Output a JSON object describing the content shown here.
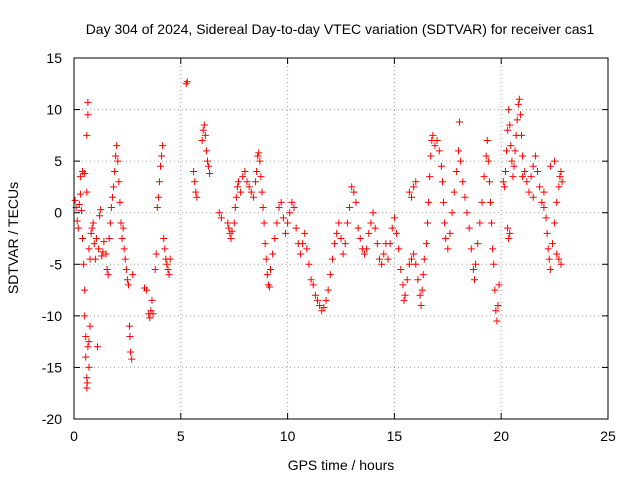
{
  "chart_data": {
    "type": "scatter",
    "title": "Day 304 of 2024, Sidereal Day-to-day VTEC variation (SDTVAR) for receiver cas1",
    "xlabel": "GPS time / hours",
    "ylabel": "SDTVAR / TECUs",
    "xlim": [
      0,
      25
    ],
    "ylim": [
      -20,
      15
    ],
    "xticks": [
      "0",
      "5",
      "10",
      "15",
      "20",
      "25"
    ],
    "yticks": [
      "-20",
      "-15",
      "-10",
      "-5",
      "0",
      "5",
      "10",
      "15"
    ],
    "grid": true,
    "marker": "+",
    "color": "#ff0000",
    "series": [
      {
        "name": "SDTVAR",
        "points": [
          [
            0.05,
            1.2
          ],
          [
            0.1,
            0.5
          ],
          [
            0.15,
            -0.8
          ],
          [
            0.2,
            -1.5
          ],
          [
            0.25,
            0.8
          ],
          [
            0.3,
            1.8
          ],
          [
            0.35,
            0.2
          ],
          [
            0.4,
            -2.5
          ],
          [
            0.3,
            3.5
          ],
          [
            0.4,
            4.0
          ],
          [
            0.45,
            -5.0
          ],
          [
            0.5,
            -7.5
          ],
          [
            0.5,
            -10
          ],
          [
            0.55,
            -12
          ],
          [
            0.55,
            -14
          ],
          [
            0.6,
            -16
          ],
          [
            0.6,
            -17
          ],
          [
            0.62,
            -16.5
          ],
          [
            0.65,
            -13
          ],
          [
            0.7,
            -15
          ],
          [
            0.7,
            -12.5
          ],
          [
            0.75,
            -11
          ],
          [
            0.5,
            3.8
          ],
          [
            0.6,
            2.0
          ],
          [
            0.6,
            7.5
          ],
          [
            0.65,
            9.5
          ],
          [
            0.65,
            10.7
          ],
          [
            0.7,
            -3.5
          ],
          [
            0.75,
            -4.5
          ],
          [
            0.8,
            -2.0
          ],
          [
            0.85,
            -1.5
          ],
          [
            0.9,
            -1.0
          ],
          [
            0.95,
            -3.0
          ],
          [
            1.0,
            -4.5
          ],
          [
            1.05,
            -2.5
          ],
          [
            1.1,
            -13.0
          ],
          [
            1.15,
            -3.5
          ],
          [
            1.2,
            -0.3
          ],
          [
            1.25,
            0.3
          ],
          [
            1.3,
            -4.2
          ],
          [
            1.35,
            -3.8
          ],
          [
            1.4,
            -2.8
          ],
          [
            1.5,
            -4.0
          ],
          [
            1.55,
            -5.5
          ],
          [
            1.6,
            -6.0
          ],
          [
            1.65,
            -2.5
          ],
          [
            1.7,
            -1.0
          ],
          [
            1.75,
            0.5
          ],
          [
            1.8,
            1.5
          ],
          [
            1.85,
            2.5
          ],
          [
            1.9,
            4.0
          ],
          [
            1.95,
            5.5
          ],
          [
            2.0,
            6.5
          ],
          [
            2.05,
            5.0
          ],
          [
            2.1,
            3.0
          ],
          [
            2.15,
            1.0
          ],
          [
            2.2,
            -1.0
          ],
          [
            2.25,
            -2.5
          ],
          [
            2.3,
            -1.5
          ],
          [
            2.35,
            -3.5
          ],
          [
            2.4,
            -4.5
          ],
          [
            2.45,
            -5.5
          ],
          [
            2.5,
            -6.5
          ],
          [
            2.55,
            -7.0
          ],
          [
            2.6,
            -11
          ],
          [
            2.62,
            -12
          ],
          [
            2.65,
            -13.5
          ],
          [
            2.7,
            -14.2
          ],
          [
            2.75,
            -6.0
          ],
          [
            3.3,
            -7.3
          ],
          [
            3.4,
            -7.5
          ],
          [
            3.5,
            -9.8
          ],
          [
            3.55,
            -10.2
          ],
          [
            3.6,
            -9.5
          ],
          [
            3.65,
            -8.5
          ],
          [
            3.7,
            -9.8
          ],
          [
            3.8,
            -5.5
          ],
          [
            3.85,
            -4.0
          ],
          [
            3.9,
            0.5
          ],
          [
            3.95,
            1.5
          ],
          [
            4.0,
            3.0
          ],
          [
            4.05,
            4.5
          ],
          [
            4.1,
            5.5
          ],
          [
            4.15,
            6.5
          ],
          [
            4.2,
            -2.5
          ],
          [
            4.25,
            -3.5
          ],
          [
            4.3,
            -4.5
          ],
          [
            4.35,
            -5.0
          ],
          [
            4.4,
            -5.5
          ],
          [
            4.45,
            -6.0
          ],
          [
            4.5,
            -4.5
          ],
          [
            5.3,
            12.7
          ],
          [
            5.25,
            12.5
          ],
          [
            5.6,
            4.0
          ],
          [
            5.65,
            3.0
          ],
          [
            5.7,
            2.0
          ],
          [
            5.75,
            1.5
          ],
          [
            6.0,
            7.0
          ],
          [
            6.05,
            8.0
          ],
          [
            6.1,
            8.5
          ],
          [
            6.15,
            7.5
          ],
          [
            6.2,
            6.0
          ],
          [
            6.25,
            5.0
          ],
          [
            6.3,
            4.5
          ],
          [
            6.35,
            3.8
          ],
          [
            6.8,
            0.0
          ],
          [
            6.9,
            -0.5
          ],
          [
            7.2,
            -1.0
          ],
          [
            7.25,
            -1.5
          ],
          [
            7.3,
            -2.0
          ],
          [
            7.35,
            -2.5
          ],
          [
            7.4,
            -1.8
          ],
          [
            7.5,
            -1.0
          ],
          [
            7.55,
            0.5
          ],
          [
            7.6,
            1.5
          ],
          [
            7.65,
            2.5
          ],
          [
            7.7,
            3.0
          ],
          [
            7.8,
            2.0
          ],
          [
            7.9,
            3.5
          ],
          [
            8.0,
            4.0
          ],
          [
            8.1,
            3.0
          ],
          [
            8.2,
            2.5
          ],
          [
            8.3,
            2.0
          ],
          [
            8.4,
            1.5
          ],
          [
            8.5,
            3.0
          ],
          [
            8.55,
            4.0
          ],
          [
            8.6,
            5.5
          ],
          [
            8.65,
            5.8
          ],
          [
            8.7,
            5.0
          ],
          [
            8.75,
            3.5
          ],
          [
            8.8,
            2.0
          ],
          [
            8.85,
            0.5
          ],
          [
            8.9,
            -1.0
          ],
          [
            8.95,
            -3.0
          ],
          [
            9.0,
            -4.5
          ],
          [
            9.05,
            -6.0
          ],
          [
            9.1,
            -7.0
          ],
          [
            9.15,
            -7.2
          ],
          [
            9.2,
            -5.5
          ],
          [
            9.3,
            -4.0
          ],
          [
            9.4,
            -2.5
          ],
          [
            9.5,
            -1.0
          ],
          [
            9.6,
            0.5
          ],
          [
            9.7,
            1.0
          ],
          [
            9.8,
            -0.5
          ],
          [
            9.9,
            -2.0
          ],
          [
            10.0,
            -1.0
          ],
          [
            10.1,
            0.0
          ],
          [
            10.2,
            1.0
          ],
          [
            10.3,
            0.5
          ],
          [
            10.4,
            -1.5
          ],
          [
            10.5,
            -3.0
          ],
          [
            10.6,
            -4.0
          ],
          [
            10.7,
            -3.0
          ],
          [
            10.8,
            -2.0
          ],
          [
            10.9,
            -3.5
          ],
          [
            11.0,
            -5.0
          ],
          [
            11.1,
            -6.5
          ],
          [
            11.2,
            -7.0
          ],
          [
            11.3,
            -8.0
          ],
          [
            11.4,
            -8.5
          ],
          [
            11.5,
            -9.0
          ],
          [
            11.6,
            -9.5
          ],
          [
            11.7,
            -9.2
          ],
          [
            11.8,
            -8.5
          ],
          [
            11.9,
            -7.5
          ],
          [
            12.0,
            -6.0
          ],
          [
            12.1,
            -4.5
          ],
          [
            12.2,
            -3.0
          ],
          [
            12.3,
            -2.0
          ],
          [
            12.4,
            -1.0
          ],
          [
            12.5,
            -2.5
          ],
          [
            12.6,
            -4.0
          ],
          [
            12.7,
            -3.0
          ],
          [
            12.8,
            -1.0
          ],
          [
            12.9,
            0.5
          ],
          [
            13.0,
            2.5
          ],
          [
            13.1,
            2.0
          ],
          [
            13.2,
            1.0
          ],
          [
            13.3,
            -1.5
          ],
          [
            13.4,
            -2.5
          ],
          [
            13.5,
            -3.5
          ],
          [
            13.6,
            -4.0
          ],
          [
            13.7,
            -3.5
          ],
          [
            13.8,
            -2.0
          ],
          [
            13.9,
            -1.0
          ],
          [
            14.0,
            0.0
          ],
          [
            14.1,
            -1.5
          ],
          [
            14.2,
            -3.0
          ],
          [
            14.3,
            -4.5
          ],
          [
            14.4,
            -5.0
          ],
          [
            14.5,
            -4.0
          ],
          [
            14.6,
            -3.0
          ],
          [
            14.7,
            -4.5
          ],
          [
            14.8,
            -3.0
          ],
          [
            14.9,
            -1.5
          ],
          [
            15.0,
            -0.5
          ],
          [
            15.1,
            -2.0
          ],
          [
            15.2,
            -3.5
          ],
          [
            15.3,
            -5.5
          ],
          [
            15.4,
            -7.0
          ],
          [
            15.45,
            -8.5
          ],
          [
            15.5,
            -8.0
          ],
          [
            15.6,
            -6.5
          ],
          [
            15.7,
            -5.0
          ],
          [
            15.8,
            -4.5
          ],
          [
            15.9,
            -4.0
          ],
          [
            16.0,
            -5.0
          ],
          [
            16.1,
            -6.5
          ],
          [
            16.2,
            -8.0
          ],
          [
            16.25,
            -9.0
          ],
          [
            16.3,
            -7.5
          ],
          [
            16.35,
            -6.0
          ],
          [
            15.7,
            2.0
          ],
          [
            15.8,
            1.5
          ],
          [
            15.9,
            2.5
          ],
          [
            16.0,
            3.0
          ],
          [
            16.4,
            -4.5
          ],
          [
            16.5,
            -3.0
          ],
          [
            16.55,
            -1.0
          ],
          [
            16.6,
            1.0
          ],
          [
            16.65,
            3.5
          ],
          [
            16.7,
            5.5
          ],
          [
            16.75,
            7.0
          ],
          [
            16.8,
            7.5
          ],
          [
            16.9,
            6.5
          ],
          [
            17.0,
            7.0
          ],
          [
            17.1,
            6.0
          ],
          [
            17.2,
            4.5
          ],
          [
            17.25,
            3.0
          ],
          [
            17.3,
            1.0
          ],
          [
            17.35,
            -1.0
          ],
          [
            17.4,
            -2.5
          ],
          [
            17.5,
            -3.5
          ],
          [
            17.6,
            -2.0
          ],
          [
            17.7,
            0.0
          ],
          [
            17.8,
            2.0
          ],
          [
            17.9,
            4.0
          ],
          [
            18.0,
            6.0
          ],
          [
            18.05,
            8.8
          ],
          [
            18.1,
            5.0
          ],
          [
            18.2,
            3.0
          ],
          [
            18.3,
            1.5
          ],
          [
            18.4,
            0.0
          ],
          [
            18.5,
            -1.5
          ],
          [
            18.6,
            -3.5
          ],
          [
            18.7,
            -5.5
          ],
          [
            18.75,
            -6.5
          ],
          [
            18.8,
            -5.0
          ],
          [
            18.9,
            -3.0
          ],
          [
            19.0,
            -1.0
          ],
          [
            19.1,
            1.0
          ],
          [
            19.2,
            3.5
          ],
          [
            19.3,
            5.5
          ],
          [
            19.35,
            7.0
          ],
          [
            19.4,
            5.0
          ],
          [
            19.45,
            3.0
          ],
          [
            19.5,
            1.0
          ],
          [
            19.55,
            -1.0
          ],
          [
            19.6,
            -3.5
          ],
          [
            19.65,
            -5.0
          ],
          [
            19.7,
            -7.5
          ],
          [
            19.75,
            -9.5
          ],
          [
            19.8,
            -10.5
          ],
          [
            19.85,
            -9.0
          ],
          [
            19.9,
            -7.0
          ],
          [
            20.1,
            3.0
          ],
          [
            20.15,
            2.5
          ],
          [
            20.2,
            4.0
          ],
          [
            20.25,
            6.0
          ],
          [
            20.3,
            8.0
          ],
          [
            20.35,
            10.0
          ],
          [
            20.4,
            8.5
          ],
          [
            20.45,
            6.5
          ],
          [
            20.5,
            5.0
          ],
          [
            20.55,
            3.5
          ],
          [
            20.3,
            -1.5
          ],
          [
            20.35,
            -2.5
          ],
          [
            20.4,
            -2.0
          ],
          [
            20.6,
            4.5
          ],
          [
            20.65,
            6.0
          ],
          [
            20.7,
            7.5
          ],
          [
            20.75,
            9.0
          ],
          [
            20.8,
            10.5
          ],
          [
            20.85,
            11.0
          ],
          [
            20.9,
            9.5
          ],
          [
            20.95,
            7.5
          ],
          [
            21.0,
            5.5
          ],
          [
            21.1,
            4.0
          ],
          [
            21.2,
            3.0
          ],
          [
            21.3,
            2.0
          ],
          [
            21.4,
            3.5
          ],
          [
            21.5,
            4.5
          ],
          [
            21.6,
            5.5
          ],
          [
            21.7,
            4.0
          ],
          [
            21.8,
            2.5
          ],
          [
            21.9,
            1.0
          ],
          [
            22.0,
            0.5
          ],
          [
            22.1,
            -0.5
          ],
          [
            22.15,
            -2.0
          ],
          [
            22.2,
            -3.5
          ],
          [
            22.25,
            -4.5
          ],
          [
            22.3,
            -5.5
          ],
          [
            22.4,
            -3.0
          ],
          [
            22.5,
            -1.0
          ],
          [
            22.6,
            1.0
          ],
          [
            22.7,
            2.5
          ],
          [
            22.75,
            3.5
          ],
          [
            22.8,
            4.0
          ],
          [
            22.85,
            3.0
          ],
          [
            22.6,
            -4.0
          ],
          [
            22.7,
            -4.5
          ],
          [
            22.8,
            -5.0
          ],
          [
            22.5,
            5.0
          ],
          [
            22.3,
            4.5
          ],
          [
            22.0,
            2.0
          ],
          [
            21.5,
            1.5
          ],
          [
            21.0,
            3.5
          ]
        ]
      }
    ]
  }
}
